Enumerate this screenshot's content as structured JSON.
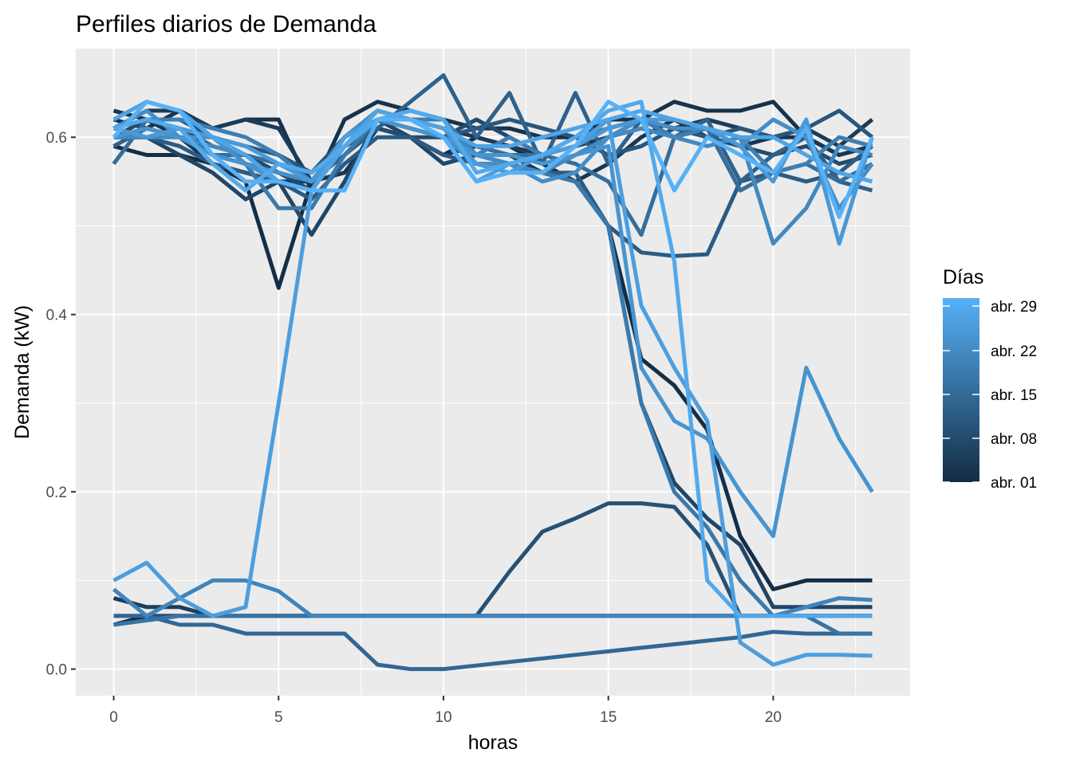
{
  "chart_data": {
    "type": "line",
    "title": "Perfiles diarios de Demanda",
    "xlabel": "horas",
    "ylabel": "Demanda (kW)",
    "xlim": [
      -1.15,
      24.15
    ],
    "ylim": [
      -0.03,
      0.7
    ],
    "x_ticks": [
      0,
      5,
      10,
      15,
      20
    ],
    "x_tick_labels": [
      "0",
      "5",
      "10",
      "15",
      "20"
    ],
    "y_ticks": [
      0.0,
      0.2,
      0.4,
      0.6
    ],
    "y_tick_labels": [
      "0.0",
      "0.2",
      "0.4",
      "0.6"
    ],
    "grid": true,
    "background": "#ebebeb",
    "legend": {
      "title": "Días",
      "position": "right",
      "type": "colorbar",
      "labels": [
        "abr. 29",
        "abr. 22",
        "abr. 15",
        "abr. 08",
        "abr. 01"
      ],
      "low_color": "#132b43",
      "high_color": "#56b1f7"
    },
    "x": [
      0,
      1,
      2,
      3,
      4,
      5,
      6,
      7,
      8,
      9,
      10,
      11,
      12,
      13,
      14,
      15,
      16,
      17,
      18,
      19,
      20,
      21,
      22,
      23
    ],
    "series": [
      {
        "values": [
          0.05,
          0.06,
          0.06,
          0.06,
          0.06,
          0.06,
          0.06,
          0.06,
          0.06,
          0.06,
          0.06,
          0.06,
          0.06,
          0.06,
          0.06,
          0.06,
          0.06,
          0.06,
          0.06,
          0.06,
          0.06,
          0.06,
          0.06,
          0.06
        ],
        "shade": 0.0
      },
      {
        "values": [
          0.59,
          0.58,
          0.58,
          0.57,
          0.55,
          0.43,
          0.55,
          0.59,
          0.61,
          0.6,
          0.58,
          0.6,
          0.59,
          0.57,
          0.55,
          0.5,
          0.35,
          0.32,
          0.27,
          0.15,
          0.09,
          0.1,
          0.1,
          0.1
        ],
        "shade": 0.02
      },
      {
        "values": [
          0.62,
          0.61,
          0.63,
          0.61,
          0.62,
          0.62,
          0.54,
          0.62,
          0.64,
          0.63,
          0.62,
          0.61,
          0.61,
          0.6,
          0.6,
          0.62,
          0.62,
          0.64,
          0.63,
          0.63,
          0.64,
          0.6,
          0.58,
          0.59
        ],
        "shade": 0.05
      },
      {
        "values": [
          0.63,
          0.62,
          0.6,
          0.57,
          0.56,
          0.55,
          0.55,
          0.56,
          0.61,
          0.6,
          0.58,
          0.59,
          0.58,
          0.56,
          0.55,
          0.57,
          0.6,
          0.62,
          0.6,
          0.59,
          0.6,
          0.6,
          0.58,
          0.59
        ],
        "shade": 0.08
      },
      {
        "values": [
          0.61,
          0.63,
          0.63,
          0.61,
          0.62,
          0.61,
          0.55,
          0.6,
          0.63,
          0.62,
          0.61,
          0.6,
          0.59,
          0.58,
          0.59,
          0.6,
          0.62,
          0.61,
          0.62,
          0.61,
          0.6,
          0.61,
          0.59,
          0.62
        ],
        "shade": 0.12
      },
      {
        "values": [
          0.08,
          0.07,
          0.07,
          0.06,
          0.06,
          0.06,
          0.06,
          0.06,
          0.06,
          0.06,
          0.06,
          0.06,
          0.06,
          0.06,
          0.06,
          0.06,
          0.06,
          0.06,
          0.06,
          0.06,
          0.06,
          0.06,
          0.06,
          0.06
        ],
        "shade": 0.15
      },
      {
        "values": [
          0.6,
          0.6,
          0.58,
          0.56,
          0.53,
          0.55,
          0.49,
          0.55,
          0.62,
          0.6,
          0.57,
          0.58,
          0.57,
          0.56,
          0.55,
          0.5,
          0.3,
          0.21,
          0.17,
          0.14,
          0.07,
          0.07,
          0.07,
          0.07
        ],
        "shade": 0.2
      },
      {
        "values": [
          0.6,
          0.62,
          0.61,
          0.59,
          0.58,
          0.56,
          0.54,
          0.59,
          0.61,
          0.6,
          0.6,
          0.62,
          0.6,
          0.58,
          0.59,
          0.61,
          0.62,
          0.61,
          0.6,
          0.59,
          0.58,
          0.59,
          0.57,
          0.58
        ],
        "shade": 0.24
      },
      {
        "values": [
          0.06,
          0.06,
          0.06,
          0.06,
          0.06,
          0.06,
          0.06,
          0.06,
          0.06,
          0.06,
          0.06,
          0.06,
          0.11,
          0.155,
          0.17,
          0.187,
          0.187,
          0.183,
          0.14,
          0.06,
          0.06,
          0.06,
          0.06,
          0.06
        ],
        "shade": 0.28
      },
      {
        "values": [
          0.61,
          0.62,
          0.62,
          0.6,
          0.59,
          0.58,
          0.56,
          0.6,
          0.62,
          0.61,
          0.6,
          0.61,
          0.62,
          0.61,
          0.6,
          0.58,
          0.59,
          0.61,
          0.6,
          0.61,
          0.6,
          0.61,
          0.63,
          0.6
        ],
        "shade": 0.32
      },
      {
        "values": [
          0.6,
          0.6,
          0.59,
          0.57,
          0.56,
          0.55,
          0.53,
          0.57,
          0.6,
          0.6,
          0.58,
          0.57,
          0.57,
          0.56,
          0.56,
          0.5,
          0.47,
          0.466,
          0.468,
          0.55,
          0.56,
          0.55,
          0.56,
          0.59
        ],
        "shade": 0.36
      },
      {
        "values": [
          0.59,
          0.61,
          0.6,
          0.58,
          0.57,
          0.56,
          0.55,
          0.58,
          0.61,
          0.64,
          0.67,
          0.6,
          0.65,
          0.57,
          0.65,
          0.57,
          0.62,
          0.6,
          0.62,
          0.55,
          0.58,
          0.6,
          0.55,
          0.54
        ],
        "shade": 0.4
      },
      {
        "values": [
          0.06,
          0.06,
          0.05,
          0.05,
          0.04,
          0.04,
          0.04,
          0.04,
          0.005,
          0.0,
          0.0,
          0.004,
          0.008,
          0.012,
          0.016,
          0.02,
          0.024,
          0.028,
          0.032,
          0.036,
          0.042,
          0.04,
          0.04,
          0.04
        ],
        "shade": 0.45
      },
      {
        "values": [
          0.57,
          0.62,
          0.61,
          0.58,
          0.58,
          0.57,
          0.56,
          0.59,
          0.62,
          0.61,
          0.6,
          0.59,
          0.58,
          0.58,
          0.57,
          0.55,
          0.49,
          0.6,
          0.61,
          0.54,
          0.56,
          0.57,
          0.55,
          0.57
        ],
        "shade": 0.5
      },
      {
        "values": [
          0.05,
          0.055,
          0.06,
          0.06,
          0.06,
          0.06,
          0.06,
          0.06,
          0.06,
          0.06,
          0.06,
          0.06,
          0.06,
          0.06,
          0.06,
          0.06,
          0.06,
          0.06,
          0.06,
          0.06,
          0.06,
          0.06,
          0.04,
          0.04
        ],
        "shade": 0.54
      },
      {
        "values": [
          0.6,
          0.61,
          0.6,
          0.58,
          0.57,
          0.52,
          0.52,
          0.58,
          0.62,
          0.62,
          0.61,
          0.58,
          0.57,
          0.56,
          0.55,
          0.5,
          0.3,
          0.2,
          0.16,
          0.1,
          0.06,
          0.06,
          0.06,
          0.06
        ],
        "shade": 0.58
      },
      {
        "values": [
          0.61,
          0.62,
          0.62,
          0.61,
          0.6,
          0.58,
          0.55,
          0.6,
          0.62,
          0.62,
          0.62,
          0.58,
          0.6,
          0.58,
          0.6,
          0.61,
          0.62,
          0.6,
          0.61,
          0.6,
          0.56,
          0.57,
          0.6,
          0.59
        ],
        "shade": 0.62
      },
      {
        "values": [
          0.09,
          0.06,
          0.08,
          0.1,
          0.1,
          0.088,
          0.06,
          0.06,
          0.06,
          0.06,
          0.06,
          0.06,
          0.06,
          0.06,
          0.06,
          0.06,
          0.06,
          0.06,
          0.06,
          0.06,
          0.06,
          0.07,
          0.08,
          0.078
        ],
        "shade": 0.67
      },
      {
        "values": [
          0.6,
          0.6,
          0.6,
          0.59,
          0.58,
          0.55,
          0.54,
          0.59,
          0.62,
          0.62,
          0.61,
          0.58,
          0.57,
          0.56,
          0.58,
          0.6,
          0.61,
          0.6,
          0.59,
          0.6,
          0.48,
          0.52,
          0.59,
          0.58
        ],
        "shade": 0.7
      },
      {
        "values": [
          0.61,
          0.63,
          0.6,
          0.6,
          0.57,
          0.56,
          0.55,
          0.6,
          0.63,
          0.62,
          0.6,
          0.57,
          0.57,
          0.55,
          0.56,
          0.6,
          0.62,
          0.61,
          0.61,
          0.59,
          0.62,
          0.6,
          0.52,
          0.57
        ],
        "shade": 0.74
      },
      {
        "values": [
          0.6,
          0.61,
          0.6,
          0.58,
          0.57,
          0.55,
          0.54,
          0.59,
          0.62,
          0.61,
          0.6,
          0.58,
          0.58,
          0.57,
          0.58,
          0.59,
          0.34,
          0.28,
          0.26,
          0.2,
          0.15,
          0.34,
          0.26,
          0.2
        ],
        "shade": 0.78
      },
      {
        "values": [
          0.61,
          0.6,
          0.61,
          0.6,
          0.59,
          0.57,
          0.55,
          0.6,
          0.62,
          0.62,
          0.61,
          0.57,
          0.56,
          0.58,
          0.59,
          0.61,
          0.62,
          0.62,
          0.61,
          0.59,
          0.55,
          0.62,
          0.48,
          0.6
        ],
        "shade": 0.82
      },
      {
        "values": [
          0.1,
          0.12,
          0.08,
          0.06,
          0.07,
          0.3,
          0.54,
          0.6,
          0.62,
          0.62,
          0.6,
          0.55,
          0.57,
          0.58,
          0.59,
          0.62,
          0.41,
          0.34,
          0.28,
          0.03,
          0.005,
          0.016,
          0.016,
          0.015
        ],
        "shade": 0.86
      },
      {
        "values": [
          0.62,
          0.64,
          0.63,
          0.6,
          0.58,
          0.55,
          0.54,
          0.59,
          0.63,
          0.62,
          0.61,
          0.59,
          0.59,
          0.6,
          0.61,
          0.62,
          0.63,
          0.62,
          0.61,
          0.6,
          0.6,
          0.58,
          0.56,
          0.55
        ],
        "shade": 0.9
      },
      {
        "values": [
          0.61,
          0.62,
          0.61,
          0.57,
          0.54,
          0.57,
          0.56,
          0.59,
          0.62,
          0.63,
          0.62,
          0.56,
          0.57,
          0.58,
          0.6,
          0.63,
          0.64,
          0.46,
          0.1,
          0.06,
          0.06,
          0.06,
          0.06,
          0.06
        ],
        "shade": 0.94
      },
      {
        "values": [
          0.6,
          0.64,
          0.63,
          0.58,
          0.55,
          0.55,
          0.54,
          0.54,
          0.62,
          0.62,
          0.6,
          0.55,
          0.56,
          0.56,
          0.59,
          0.64,
          0.62,
          0.54,
          0.6,
          0.58,
          0.56,
          0.61,
          0.51,
          0.6
        ],
        "shade": 1.0
      }
    ]
  }
}
